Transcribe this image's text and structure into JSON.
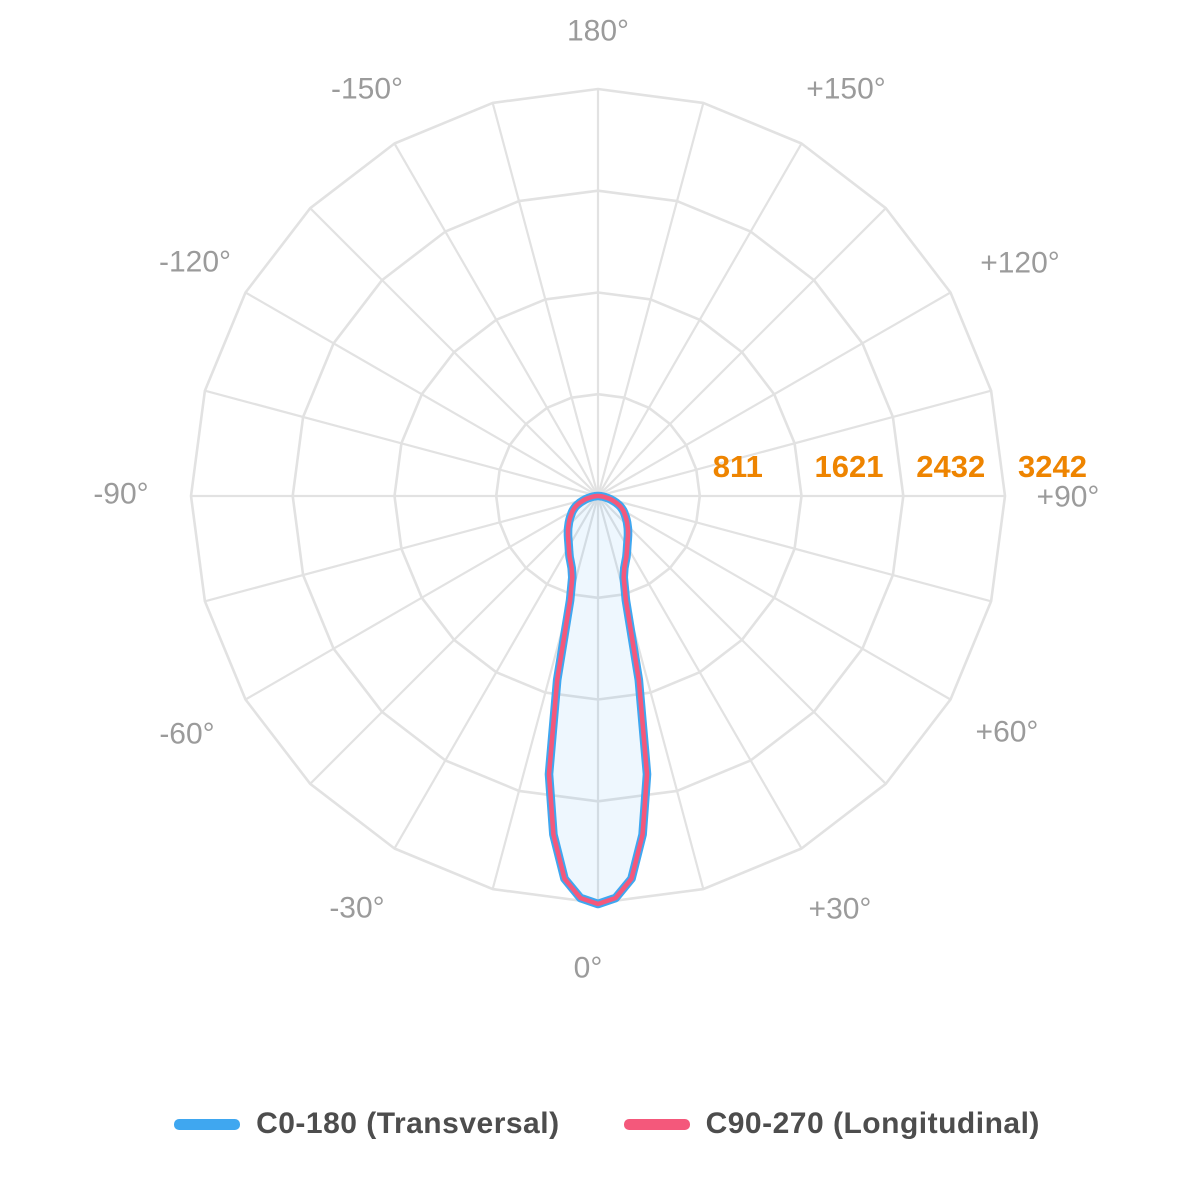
{
  "chart_data": {
    "type": "polar",
    "title": "",
    "description": "Polar luminous intensity distribution curve (photometric diagram), 0 deg at bottom",
    "angle_axis": {
      "zero_position": "bottom",
      "grid_step_deg": 15,
      "label_step_deg": 30,
      "labels": [
        "180°",
        "-150°",
        "-120°",
        "-90°",
        "-60°",
        "-30°",
        "0°",
        "+30°",
        "+60°",
        "+90°",
        "+120°",
        "+150°"
      ]
    },
    "radial_axis": {
      "ticks": [
        811,
        1621,
        2432,
        3242
      ],
      "max": 3242,
      "rings": 4
    },
    "sample_angles_deg": [
      0,
      2.5,
      5,
      7.5,
      10,
      12.5,
      15,
      17.5,
      20,
      22.5,
      25,
      27.5,
      30,
      32.5,
      35,
      37.5,
      40,
      42.5,
      45,
      47.5,
      50,
      52.5,
      55,
      57.5,
      60,
      62.5,
      65,
      67.5,
      70,
      72.5,
      75,
      77.5,
      80,
      82.5,
      85,
      87.5,
      90
    ],
    "series": [
      {
        "name": "C0-180 (Transversal)",
        "color": "#3fa7f0",
        "symmetric": true,
        "values": [
          3250,
          3205,
          3060,
          2720,
          2250,
          1500,
          860,
          680,
          612,
          570,
          535,
          498,
          465,
          438,
          414,
          392,
          372,
          352,
          332,
          314,
          296,
          279,
          262,
          247,
          232,
          214,
          195,
          174,
          152,
          129,
          106,
          84,
          62,
          43,
          26,
          13,
          4
        ]
      },
      {
        "name": "C90-270 (Longitudinal)",
        "color": "#f4587b",
        "symmetric": true,
        "values": [
          3250,
          3205,
          3060,
          2720,
          2250,
          1500,
          860,
          680,
          612,
          570,
          535,
          498,
          465,
          438,
          414,
          392,
          372,
          352,
          332,
          314,
          296,
          279,
          262,
          247,
          232,
          214,
          195,
          174,
          152,
          129,
          106,
          84,
          62,
          43,
          26,
          13,
          4
        ]
      }
    ],
    "colors": {
      "grid": "#e2e2e2",
      "angle_labels": "#9b9b9b",
      "radial_tick_labels": "#ee8400",
      "beam_fill": "rgba(63, 166, 240, 0.09)",
      "legend_text": "#4d4d4d",
      "background": "#ffffff"
    },
    "legend_position": "bottom"
  }
}
